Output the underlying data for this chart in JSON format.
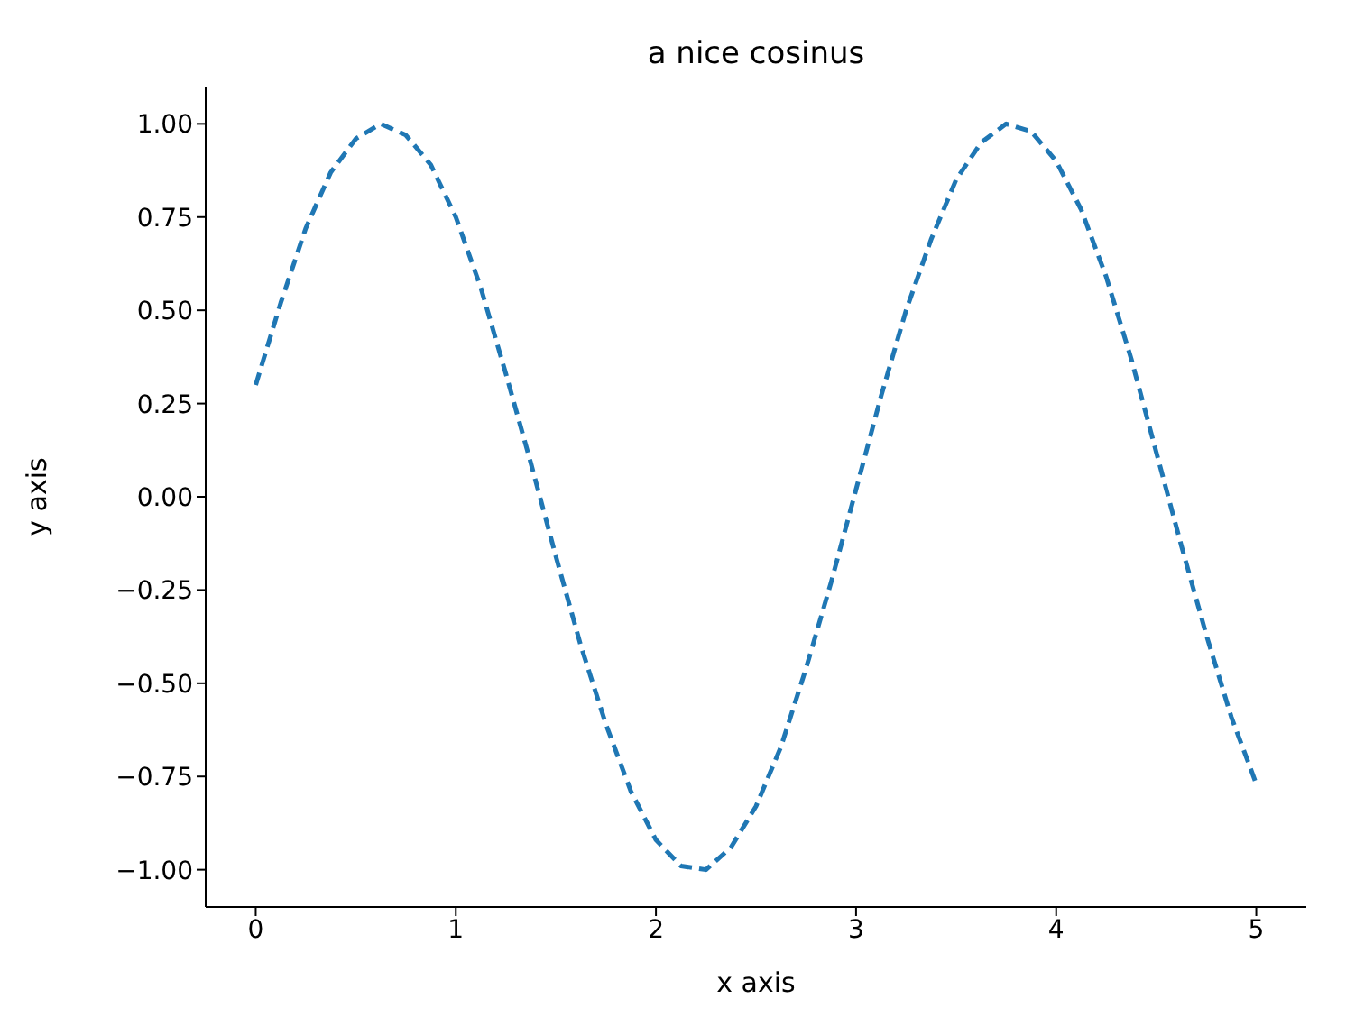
{
  "chart_data": {
    "type": "line",
    "title": "a nice cosinus",
    "xlabel": "x axis",
    "ylabel": "y axis",
    "x": [
      0,
      0.125,
      0.25,
      0.375,
      0.5,
      0.625,
      0.75,
      0.875,
      1,
      1.125,
      1.25,
      1.375,
      1.5,
      1.625,
      1.75,
      1.875,
      2,
      2.125,
      2.25,
      2.375,
      2.5,
      2.625,
      2.75,
      2.875,
      3,
      3.125,
      3.25,
      3.375,
      3.5,
      3.625,
      3.75,
      3.875,
      4,
      4.125,
      4.25,
      4.375,
      4.5,
      4.625,
      4.75,
      4.875,
      5
    ],
    "series": [
      {
        "color": "#1f77b4",
        "values": [
          0.3,
          0.52,
          0.72,
          0.87,
          0.96,
          1.0,
          0.97,
          0.89,
          0.75,
          0.56,
          0.33,
          0.09,
          -0.16,
          -0.4,
          -0.61,
          -0.79,
          -0.92,
          -0.99,
          -1.0,
          -0.94,
          -0.83,
          -0.67,
          -0.46,
          -0.23,
          0.02,
          0.27,
          0.5,
          0.69,
          0.85,
          0.95,
          1.0,
          0.98,
          0.9,
          0.77,
          0.59,
          0.37,
          0.12,
          -0.13,
          -0.37,
          -0.59,
          -0.77
        ]
      }
    ],
    "xlim": [
      -0.25,
      5.25
    ],
    "xticks": [
      0,
      1,
      2,
      3,
      4,
      5
    ],
    "ylim": [
      -1.1,
      1.1
    ],
    "yticks": [
      {
        "value": -1,
        "label": "−1.00"
      },
      {
        "value": -0.75,
        "label": "−0.75"
      },
      {
        "value": -0.5,
        "label": "−0.50"
      },
      {
        "value": -0.25,
        "label": "−0.25"
      },
      {
        "value": 0,
        "label": "0.00"
      },
      {
        "value": 0.25,
        "label": "0.25"
      },
      {
        "value": 0.5,
        "label": "0.50"
      },
      {
        "value": 0.75,
        "label": "0.75"
      },
      {
        "value": 1,
        "label": "1.00"
      }
    ],
    "grid": false,
    "legend": false,
    "marker": "none",
    "line_style": "dashed"
  }
}
